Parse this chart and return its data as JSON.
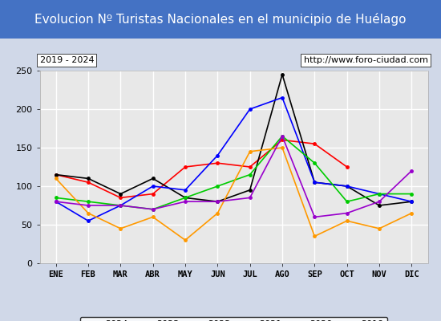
{
  "title": "Evolucion Nº Turistas Nacionales en el municipio de Huélago",
  "subtitle_left": "2019 - 2024",
  "subtitle_right": "http://www.foro-ciudad.com",
  "months": [
    "ENE",
    "FEB",
    "MAR",
    "ABR",
    "MAY",
    "JUN",
    "JUL",
    "AGO",
    "SEP",
    "OCT",
    "NOV",
    "DIC"
  ],
  "ylim": [
    0,
    250
  ],
  "yticks": [
    0,
    50,
    100,
    150,
    200,
    250
  ],
  "series": {
    "2024": {
      "color": "#ff0000",
      "data": [
        115,
        105,
        85,
        90,
        125,
        130,
        125,
        160,
        155,
        125,
        null,
        null
      ]
    },
    "2023": {
      "color": "#000000",
      "data": [
        115,
        110,
        90,
        110,
        85,
        80,
        95,
        245,
        105,
        100,
        75,
        80
      ]
    },
    "2022": {
      "color": "#0000ff",
      "data": [
        80,
        55,
        75,
        100,
        95,
        140,
        200,
        215,
        105,
        100,
        90,
        80
      ]
    },
    "2021": {
      "color": "#00cc00",
      "data": [
        85,
        80,
        75,
        70,
        85,
        100,
        115,
        165,
        130,
        80,
        90,
        90
      ]
    },
    "2020": {
      "color": "#ff9900",
      "data": [
        110,
        65,
        45,
        60,
        30,
        65,
        145,
        150,
        35,
        55,
        45,
        65
      ]
    },
    "2019": {
      "color": "#9900cc",
      "data": [
        80,
        75,
        75,
        70,
        80,
        80,
        85,
        165,
        60,
        65,
        80,
        120
      ]
    }
  },
  "background_color": "#f0f0f0",
  "title_bg_color": "#4472c4",
  "title_color": "#ffffff",
  "subtitle_bg_color": "#ffffff",
  "subtitle_color": "#000000",
  "grid_color": "#ffffff",
  "plot_bg_color": "#e8e8e8"
}
